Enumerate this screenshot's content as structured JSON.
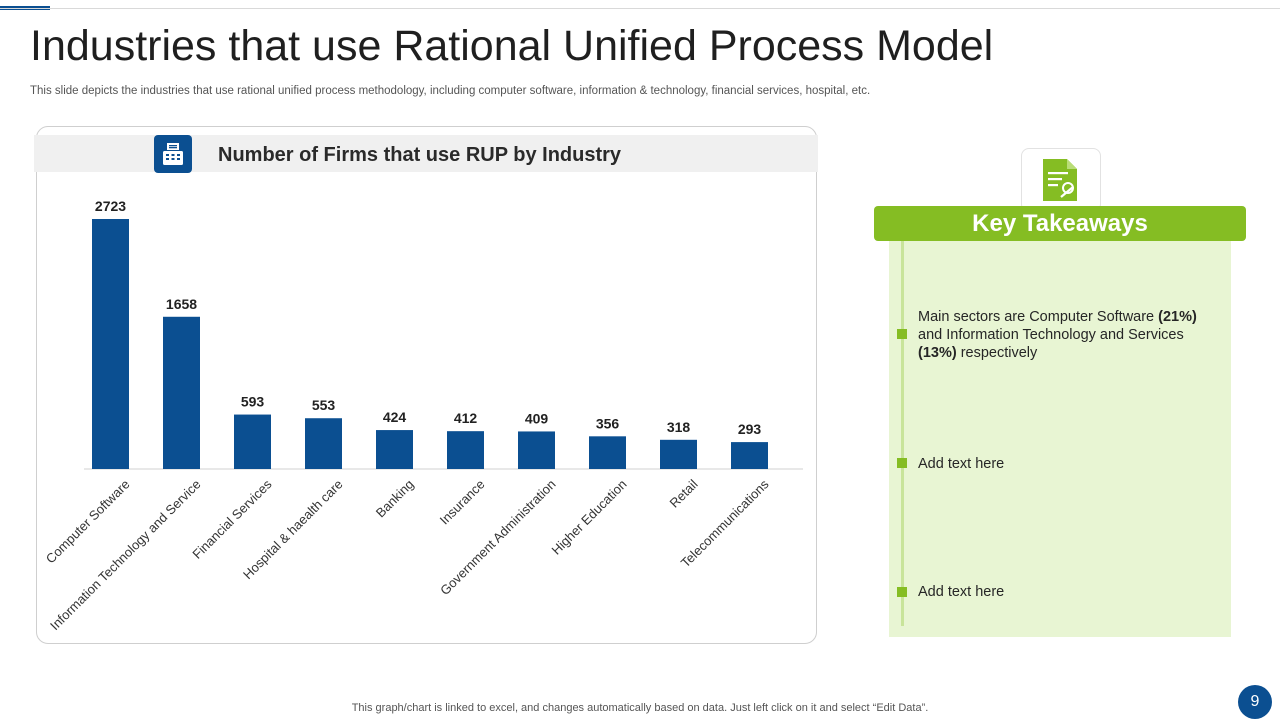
{
  "slide": {
    "title": "Industries that use Rational Unified Process Model",
    "subtitle": "This slide depicts the industries that use rational unified process methodology, including computer software, information & technology, financial services, hospital, etc.",
    "footer_note": "This graph/chart is linked to excel,  and changes automatically based on data. Just left click on it and select “Edit Data”.",
    "page_number": "9"
  },
  "chart_panel": {
    "icon": "calculator-icon",
    "title": "Number of Firms that use RUP by Industry"
  },
  "chart_data": {
    "type": "bar",
    "title": "Number of Firms that use RUP by Industry",
    "categories": [
      "Computer Software",
      "Information Technology and Service",
      "Financial Services",
      "Hospital & haealth care",
      "Banking",
      "Insurance",
      "Government Administration",
      "Higher Education",
      "Retail",
      "Telecommunications"
    ],
    "values": [
      2723,
      1658,
      593,
      553,
      424,
      412,
      409,
      356,
      318,
      293
    ],
    "xlabel": "",
    "ylabel": "",
    "ylim": [
      0,
      2723
    ],
    "grid": false,
    "legend": "none",
    "data_labels": true,
    "bar_color": "#0b4f91"
  },
  "takeaways": {
    "icon": "document-certificate-icon",
    "header": "Key Takeaways",
    "item1": {
      "part1": "Main sectors are Computer Software ",
      "bold1": "(21%)",
      "part2": " and Information Technology and Services ",
      "bold2": "(13%)",
      "part3": " respectively"
    },
    "item2": "Add text here",
    "item3": "Add text here"
  },
  "colors": {
    "primary_blue": "#0b4f91",
    "accent_green": "#85bd23",
    "panel_green": "#e8f5d3"
  }
}
